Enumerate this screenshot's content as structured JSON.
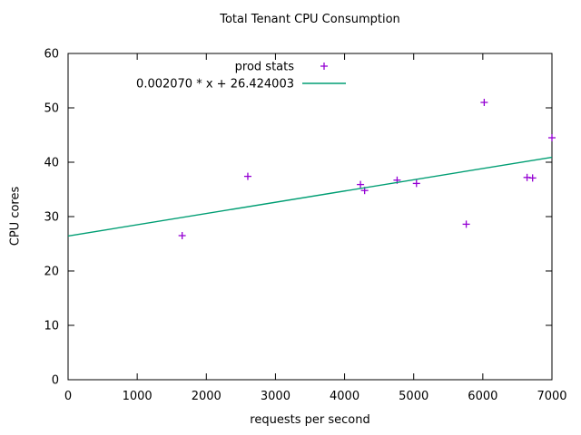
{
  "chart_data": {
    "type": "scatter",
    "title": "Total Tenant CPU Consumption",
    "xlabel": "requests per second",
    "ylabel": "CPU cores",
    "xlim": [
      0,
      7000
    ],
    "ylim": [
      0,
      60
    ],
    "xticks": [
      0,
      1000,
      2000,
      3000,
      4000,
      5000,
      6000,
      7000
    ],
    "yticks": [
      0,
      10,
      20,
      30,
      40,
      50,
      60
    ],
    "grid": false,
    "legend_position": "top-center-inside",
    "colors": {
      "points": "#9400d3",
      "fit_line": "#009e73",
      "axis": "#000000",
      "background": "#ffffff"
    },
    "series": [
      {
        "name": "prod stats",
        "kind": "scatter",
        "marker": "plus",
        "color": "#9400d3",
        "points": [
          [
            1650,
            26.5
          ],
          [
            2600,
            37.4
          ],
          [
            4230,
            35.9
          ],
          [
            4290,
            34.8
          ],
          [
            4760,
            36.7
          ],
          [
            5040,
            36.1
          ],
          [
            5760,
            28.6
          ],
          [
            6020,
            51.0
          ],
          [
            6640,
            37.2
          ],
          [
            6720,
            37.1
          ],
          [
            7000,
            44.5
          ]
        ]
      },
      {
        "name": "0.002070 * x + 26.424003",
        "kind": "line",
        "color": "#009e73",
        "slope": 0.00207,
        "intercept": 26.424003
      }
    ]
  }
}
